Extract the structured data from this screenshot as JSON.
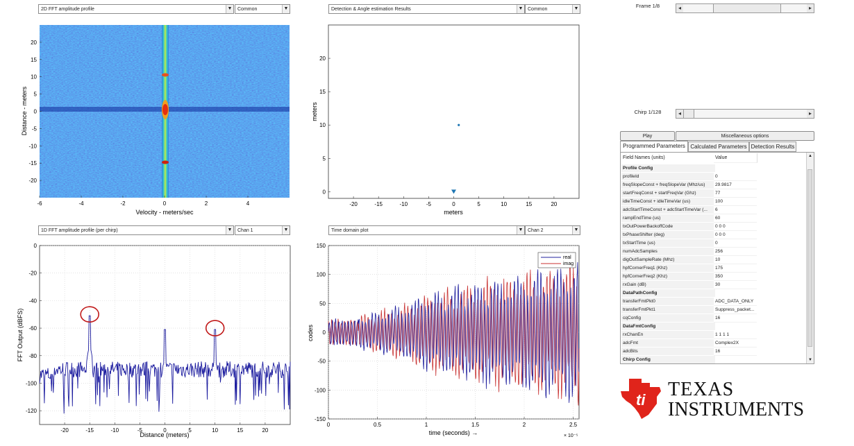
{
  "panels": {
    "top_left": {
      "select": "2D FFT amplitude profile",
      "channel": "Common"
    },
    "top_right": {
      "select": "Detection & Angle estimation Results",
      "channel": "Common"
    },
    "bottom_left": {
      "select": "1D FFT amplitude profile (per chirp)",
      "channel": "Chan 1"
    },
    "bottom_right": {
      "select": "Time domain plot",
      "channel": "Chan 2"
    }
  },
  "controls": {
    "frame_label": "Frame 1/8",
    "chirp_label": "Chirp 1/128",
    "frame_position": 0.52,
    "chirp_position": 0.0,
    "play": "Play",
    "misc": "Miscellaneous options"
  },
  "tabs": [
    "Programmed Parameters",
    "Calculated Parameters",
    "Detection Results"
  ],
  "table": {
    "header": [
      "Field Names   (units)",
      "Value"
    ],
    "rows": [
      {
        "type": "section",
        "name": "Profile Config"
      },
      {
        "name": "profileId",
        "value": "0"
      },
      {
        "name": "freqSlopeConst + freqSlopeVar (Mhz/us)",
        "value": "29.9817"
      },
      {
        "name": "startFreqConst + startFreqVar (Ghz)",
        "value": "77"
      },
      {
        "name": "idleTimeConst + idleTimeVar (us)",
        "value": "100"
      },
      {
        "name": "adcStartTimeConst + adcStartTimeVar (...",
        "value": "6"
      },
      {
        "name": "rampEndTime (us)",
        "value": "60"
      },
      {
        "name": "txOutPowerBackoffCode",
        "value": "0 0 0"
      },
      {
        "name": "txPhaseShifter (deg)",
        "value": "0 0 0"
      },
      {
        "name": "txStartTime (us)",
        "value": "0"
      },
      {
        "name": "numAdcSamples",
        "value": "256"
      },
      {
        "name": "digOutSampleRate (Mhz)",
        "value": "10"
      },
      {
        "name": "hpfCornerFreq1 (Khz)",
        "value": "175"
      },
      {
        "name": "hpfCornerFreq2 (Khz)",
        "value": "350"
      },
      {
        "name": "rxGain (dB)",
        "value": "30"
      },
      {
        "type": "section",
        "name": "DataPathConfig"
      },
      {
        "name": "transferFmtPkt0",
        "value": "ADC_DATA_ONLY"
      },
      {
        "name": "transferFmtPkt1",
        "value": "Suppress_packet..."
      },
      {
        "name": "cqConfig",
        "value": "16"
      },
      {
        "type": "section",
        "name": "DataFmtConfig"
      },
      {
        "name": "rxChanEn",
        "value": "1 1 1 1"
      },
      {
        "name": "adcFmt",
        "value": "Complex2X"
      },
      {
        "name": "adcBits",
        "value": "16"
      },
      {
        "type": "section",
        "name": "Chirp Config"
      }
    ]
  },
  "logo": {
    "line1": "Texas",
    "line2": "Instruments",
    "color": "#e0241b"
  },
  "chart_data": [
    {
      "type": "heatmap",
      "xlabel": "Velocity - meters/sec",
      "ylabel": "Distance - meters",
      "xlim": [
        -6,
        6
      ],
      "ylim": [
        -25,
        25
      ],
      "xticks": [
        "-6",
        "-4",
        "-2",
        "0",
        "2",
        "4"
      ],
      "yticks": [
        "-20",
        "-15",
        "-10",
        "-5",
        "0",
        "5",
        "10",
        "15",
        "20"
      ],
      "colors": {
        "low": "#1d3fd6",
        "high": "#e53010"
      }
    },
    {
      "type": "scatter",
      "xlabel": "meters",
      "ylabel": "meters",
      "xlim": [
        -25,
        25
      ],
      "ylim": [
        -1,
        25
      ],
      "xticks": [
        "-20",
        "-15",
        "-10",
        "-5",
        "0",
        "5",
        "10",
        "15",
        "20"
      ],
      "yticks": [
        "0",
        "5",
        "10",
        "15",
        "20"
      ],
      "points": [
        {
          "x": 1,
          "y": 10
        }
      ],
      "origin_marker": {
        "x": 0,
        "y": 0
      },
      "color": "#1f77b4"
    },
    {
      "type": "line",
      "xlabel": "Distance (meters)",
      "ylabel": "FFT Output (dBFS)",
      "xlim": [
        -25,
        25
      ],
      "ylim": [
        -130,
        0
      ],
      "xticks": [
        "-20",
        "-15",
        "-10",
        "-5",
        "0",
        "5",
        "10",
        "15",
        "20"
      ],
      "yticks": [
        "0",
        "-20",
        "-40",
        "-60",
        "-80",
        "-100",
        "-120"
      ],
      "peaks": [
        {
          "x": -15,
          "y": -51
        },
        {
          "x": 0,
          "y": -61
        },
        {
          "x": 10,
          "y": -61
        }
      ],
      "circled_peaks": [
        {
          "x": -15,
          "y": -51
        },
        {
          "x": 10,
          "y": -61
        }
      ],
      "noise_floor": -90,
      "color": "#1a1a9e",
      "circle_color": "#c01818"
    },
    {
      "type": "line",
      "xlabel": "time  (seconds) →",
      "ylabel": "codes",
      "xlim": [
        0,
        2.56
      ],
      "ylim": [
        -150,
        150
      ],
      "x_exponent": "× 10⁻⁵",
      "xticks": [
        "0",
        "0.5",
        "1",
        "1.5",
        "2",
        "2.5"
      ],
      "yticks": [
        "150",
        "100",
        "50",
        "0",
        "-50",
        "-100",
        "-150"
      ],
      "series": [
        {
          "name": "real",
          "color": "#1f1f9e"
        },
        {
          "name": "imag",
          "color": "#c83232"
        }
      ]
    }
  ]
}
